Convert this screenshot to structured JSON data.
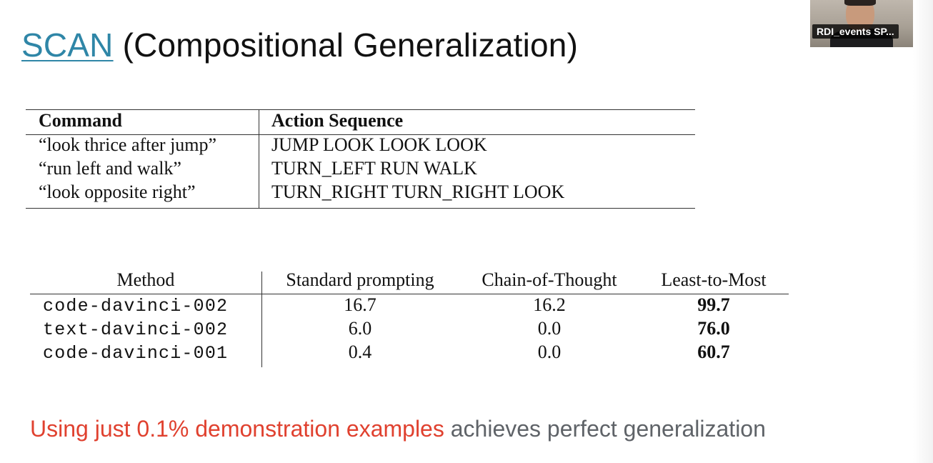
{
  "slide": {
    "title_link": "SCAN",
    "title_rest": " (Compositional Generalization)",
    "caption_highlight": "Using just 0.1% demonstration examples",
    "caption_rest": " achieves perfect generalization"
  },
  "participant": {
    "name_label": "RDI_events SP..."
  },
  "scan_table": {
    "headers": [
      "Command",
      "Action Sequence"
    ],
    "rows": [
      [
        "“look thrice after jump”",
        "JUMP LOOK LOOK LOOK"
      ],
      [
        "“run left and walk”",
        "TURN_LEFT RUN WALK"
      ],
      [
        "“look opposite right”",
        "TURN_RIGHT TURN_RIGHT LOOK"
      ]
    ]
  },
  "results_table": {
    "headers": [
      "Method",
      "Standard prompting",
      "Chain-of-Thought",
      "Least-to-Most"
    ],
    "rows": [
      [
        "code-davinci-002",
        "16.7",
        "16.2",
        "99.7"
      ],
      [
        "text-davinci-002",
        "6.0",
        "0.0",
        "76.0"
      ],
      [
        "code-davinci-001",
        "0.4",
        "0.0",
        "60.7"
      ]
    ]
  }
}
